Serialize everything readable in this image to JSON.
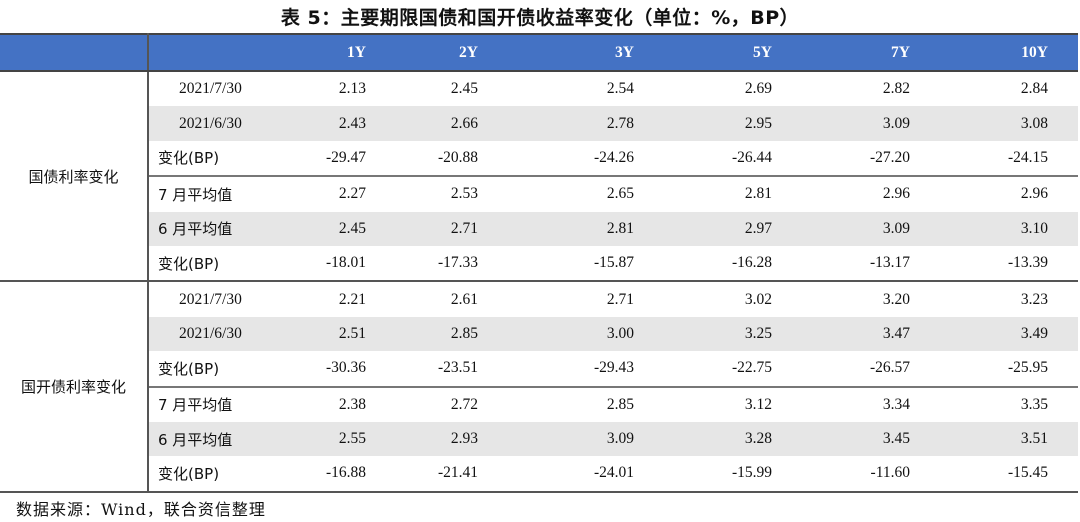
{
  "title": "表 5：主要期限国债和国开债收益率变化（单位：%，BP）",
  "columns": [
    "",
    "",
    "1Y",
    "2Y",
    "3Y",
    "5Y",
    "7Y",
    "10Y"
  ],
  "groups": [
    {
      "name": "国债利率变化",
      "rows": [
        {
          "label": "2021/7/30",
          "values": [
            "2.13",
            "2.45",
            "2.54",
            "2.69",
            "2.82",
            "2.84"
          ]
        },
        {
          "label": "2021/6/30",
          "values": [
            "2.43",
            "2.66",
            "2.78",
            "2.95",
            "3.09",
            "3.08"
          ]
        },
        {
          "label": "变化(BP)",
          "values": [
            "-29.47",
            "-20.88",
            "-24.26",
            "-26.44",
            "-27.20",
            "-24.15"
          ]
        },
        {
          "label": "7 月平均值",
          "values": [
            "2.27",
            "2.53",
            "2.65",
            "2.81",
            "2.96",
            "2.96"
          ]
        },
        {
          "label": "6 月平均值",
          "values": [
            "2.45",
            "2.71",
            "2.81",
            "2.97",
            "3.09",
            "3.10"
          ]
        },
        {
          "label": "变化(BP)",
          "values": [
            "-18.01",
            "-17.33",
            "-15.87",
            "-16.28",
            "-13.17",
            "-13.39"
          ]
        }
      ]
    },
    {
      "name": "国开债利率变化",
      "rows": [
        {
          "label": "2021/7/30",
          "values": [
            "2.21",
            "2.61",
            "2.71",
            "3.02",
            "3.20",
            "3.23"
          ]
        },
        {
          "label": "2021/6/30",
          "values": [
            "2.51",
            "2.85",
            "3.00",
            "3.25",
            "3.47",
            "3.49"
          ]
        },
        {
          "label": "变化(BP)",
          "values": [
            "-30.36",
            "-23.51",
            "-29.43",
            "-22.75",
            "-26.57",
            "-25.95"
          ]
        },
        {
          "label": "7 月平均值",
          "values": [
            "2.38",
            "2.72",
            "2.85",
            "3.12",
            "3.34",
            "3.35"
          ]
        },
        {
          "label": "6 月平均值",
          "values": [
            "2.55",
            "2.93",
            "3.09",
            "3.28",
            "3.45",
            "3.51"
          ]
        },
        {
          "label": "变化(BP)",
          "values": [
            "-16.88",
            "-21.41",
            "-24.01",
            "-15.99",
            "-11.60",
            "-15.45"
          ]
        }
      ]
    }
  ],
  "source": "数据来源：Wind，联合资信整理",
  "colors": {
    "header": "#4472C4",
    "stripe": "#E6E6E6"
  }
}
